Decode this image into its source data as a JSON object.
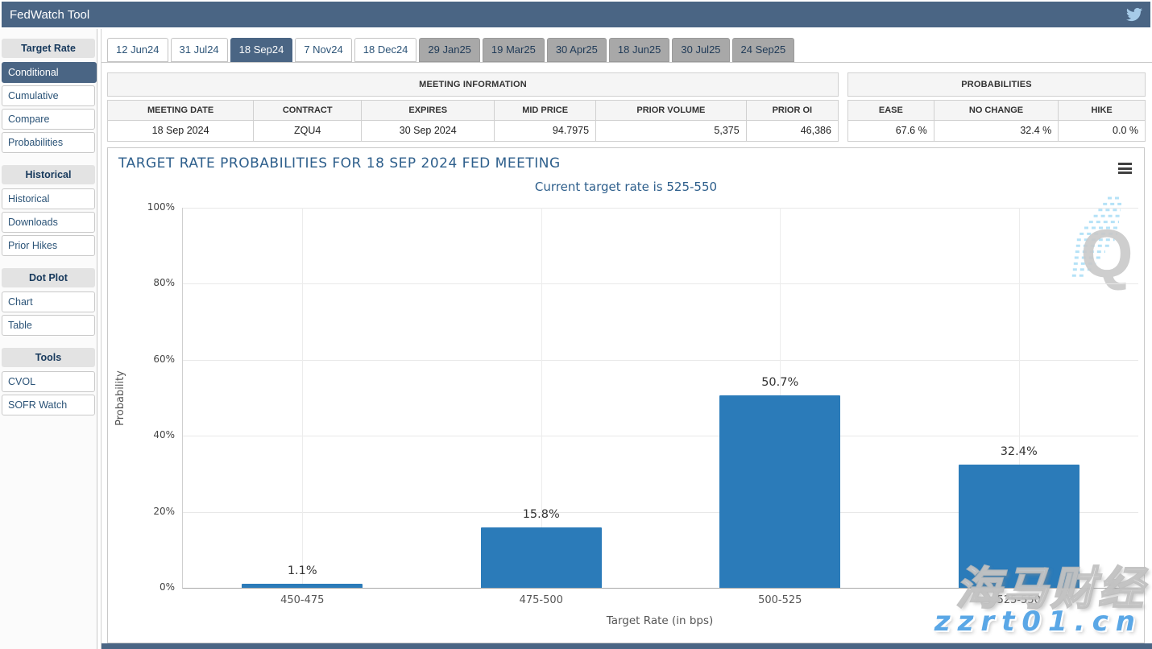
{
  "header": {
    "title": "FedWatch Tool",
    "twitter_icon": "twitter-bird"
  },
  "sidebar": {
    "sections": [
      {
        "header": "Target Rate",
        "items": [
          {
            "label": "Conditional",
            "active": true
          },
          {
            "label": "Cumulative"
          },
          {
            "label": "Compare"
          },
          {
            "label": "Probabilities"
          }
        ]
      },
      {
        "header": "Historical",
        "items": [
          {
            "label": "Historical"
          },
          {
            "label": "Downloads"
          },
          {
            "label": "Prior Hikes"
          }
        ]
      },
      {
        "header": "Dot Plot",
        "items": [
          {
            "label": "Chart"
          },
          {
            "label": "Table"
          }
        ]
      },
      {
        "header": "Tools",
        "items": [
          {
            "label": "CVOL"
          },
          {
            "label": "SOFR Watch"
          }
        ]
      }
    ]
  },
  "tabs": [
    {
      "label": "12 Jun24",
      "state": "normal"
    },
    {
      "label": "31 Jul24",
      "state": "normal"
    },
    {
      "label": "18 Sep24",
      "state": "active"
    },
    {
      "label": "7 Nov24",
      "state": "normal"
    },
    {
      "label": "18 Dec24",
      "state": "normal"
    },
    {
      "label": "29 Jan25",
      "state": "far"
    },
    {
      "label": "19 Mar25",
      "state": "far"
    },
    {
      "label": "30 Apr25",
      "state": "far"
    },
    {
      "label": "18 Jun25",
      "state": "far"
    },
    {
      "label": "30 Jul25",
      "state": "far"
    },
    {
      "label": "24 Sep25",
      "state": "far"
    }
  ],
  "meeting_information": {
    "caption": "MEETING INFORMATION",
    "columns": [
      "MEETING DATE",
      "CONTRACT",
      "EXPIRES",
      "MID PRICE",
      "PRIOR VOLUME",
      "PRIOR OI"
    ],
    "values": [
      "18 Sep 2024",
      "ZQU4",
      "30 Sep 2024",
      "94.7975",
      "5,375",
      "46,386"
    ]
  },
  "probabilities_panel": {
    "caption": "PROBABILITIES",
    "columns": [
      "EASE",
      "NO CHANGE",
      "HIKE"
    ],
    "values": [
      "67.6 %",
      "32.4 %",
      "0.0 %"
    ]
  },
  "chart_data": {
    "type": "bar",
    "title": "TARGET RATE PROBABILITIES FOR 18 SEP 2024 FED MEETING",
    "subtitle": "Current target rate is 525-550",
    "categories": [
      "450-475",
      "475-500",
      "500-525",
      "525-550"
    ],
    "values": [
      1.1,
      15.8,
      50.7,
      32.4
    ],
    "data_labels": [
      "1.1%",
      "15.8%",
      "50.7%",
      "32.4%"
    ],
    "xlabel": "Target Rate (in bps)",
    "ylabel": "Probability",
    "ylim": [
      0,
      100
    ],
    "yticks": [
      "0%",
      "20%",
      "40%",
      "60%",
      "80%",
      "100%"
    ],
    "bar_color": "#2b7bb9",
    "grid": true,
    "legend": "none"
  },
  "colors": {
    "accent_slate": "#4a6584",
    "bar_blue": "#2b7bb9",
    "title_blue": "#2e5f8c",
    "watermark_blue": "#5aa7e6"
  },
  "watermark": {
    "line1": "海马财经",
    "line2": "zzrt01.cn"
  }
}
